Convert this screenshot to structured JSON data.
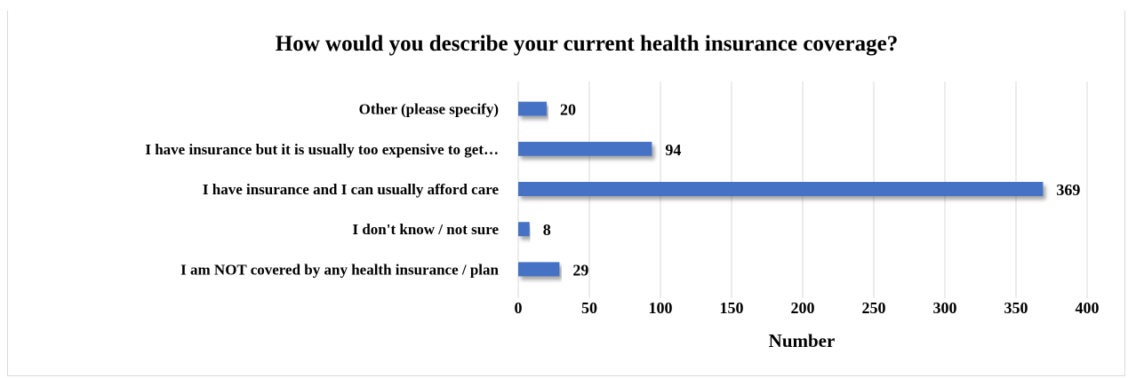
{
  "chart_data": {
    "type": "bar",
    "orientation": "horizontal",
    "title": "How would you describe your current health insurance coverage?",
    "xlabel": "Number",
    "ylabel": "",
    "xlim": [
      0,
      400
    ],
    "x_ticks": [
      0,
      50,
      100,
      150,
      200,
      250,
      300,
      350,
      400
    ],
    "categories": [
      "Other (please specify)",
      "I have insurance but it is usually too expensive to get…",
      "I have insurance and I can usually afford care",
      "I don't know / not sure",
      "I am NOT covered by any health insurance / plan"
    ],
    "values": [
      20,
      94,
      369,
      8,
      29
    ],
    "grid": "vertical",
    "legend": "none",
    "bar_color": "#4472c4",
    "grid_color": "#d9d9d9"
  }
}
